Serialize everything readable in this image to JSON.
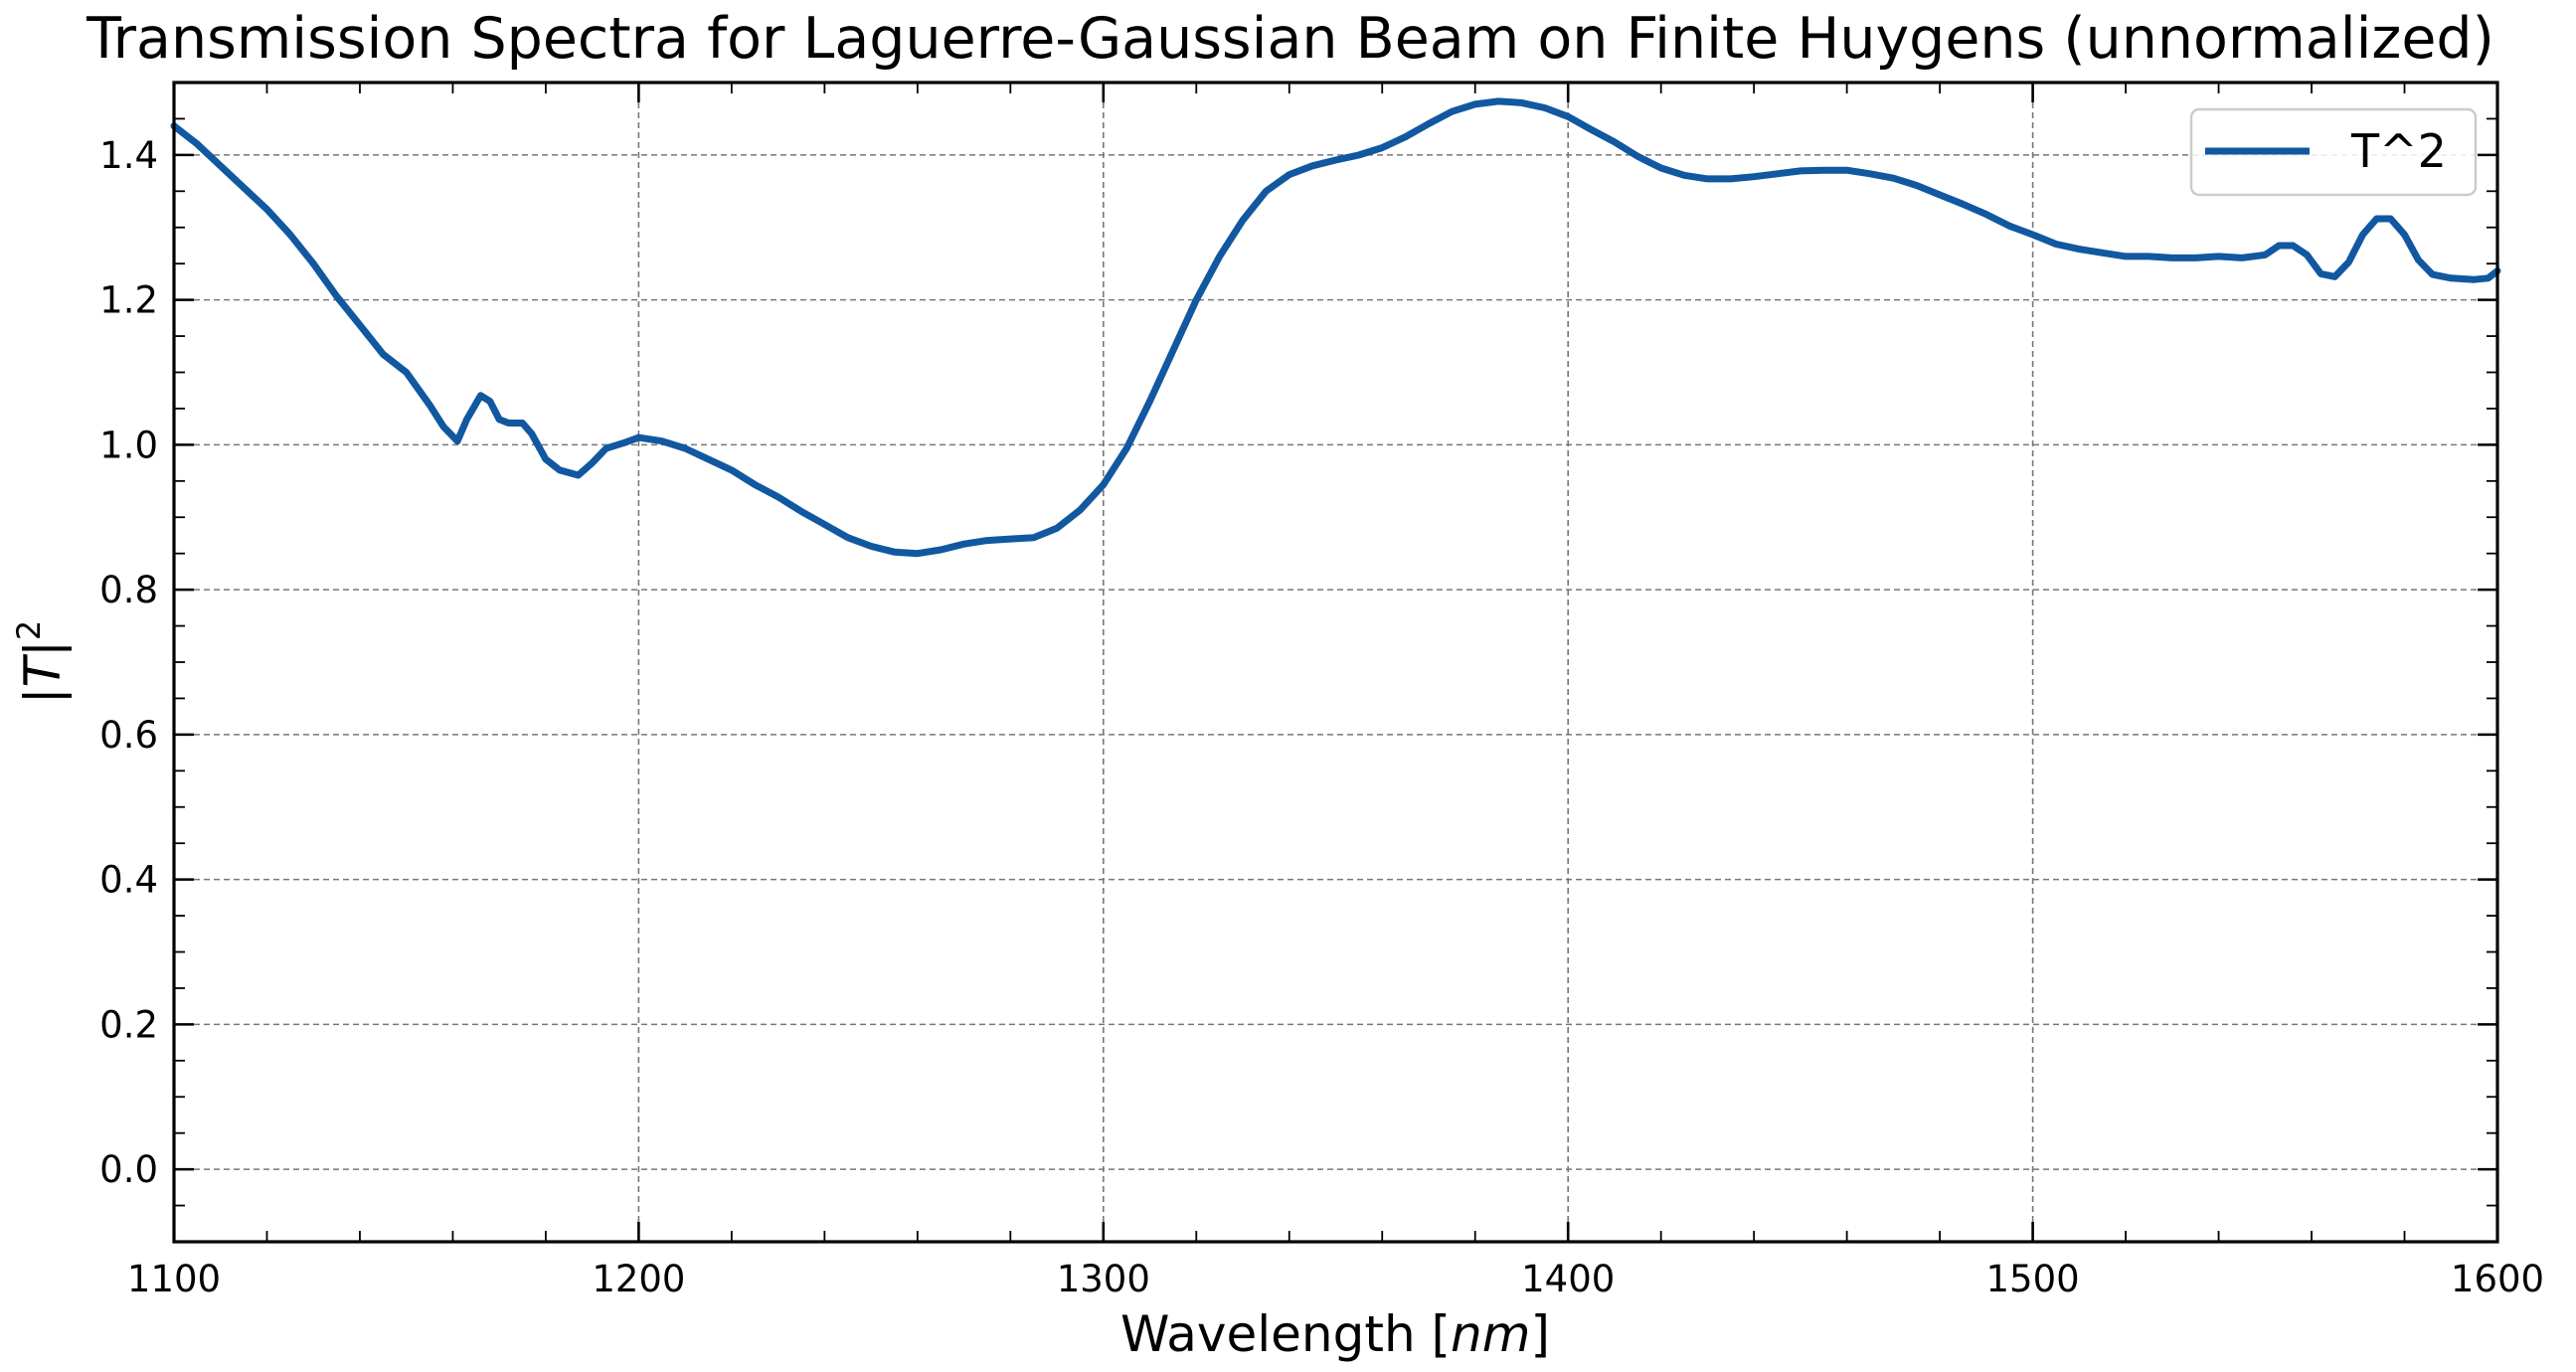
{
  "chart_data": {
    "type": "line",
    "title": "Transmission Spectra for Laguerre-Gaussian Beam on Finite Huygens (unnormalized)",
    "xlabel_main": "Wavelength [",
    "xlabel_unit": "nm",
    "xlabel_close": "]",
    "ylabel_main": "|T|",
    "ylabel_sup": "2",
    "xlim": [
      1100,
      1600
    ],
    "ylim": [
      -0.1,
      1.5
    ],
    "xticks": [
      "1100",
      "1200",
      "1300",
      "1400",
      "1500",
      "1600"
    ],
    "yticks": [
      "0.0",
      "0.2",
      "0.4",
      "0.6",
      "0.8",
      "1.0",
      "1.2",
      "1.4"
    ],
    "grid": true,
    "legend_position": "top-right",
    "series": [
      {
        "name": "T^2",
        "color": "#1158a0",
        "x": [
          1100,
          1105,
          1110,
          1115,
          1120,
          1125,
          1130,
          1135,
          1140,
          1145,
          1150,
          1155,
          1158,
          1161,
          1163,
          1166,
          1168,
          1170,
          1172,
          1175,
          1177,
          1180,
          1183,
          1187,
          1190,
          1193,
          1197,
          1200,
          1205,
          1210,
          1215,
          1220,
          1225,
          1230,
          1235,
          1240,
          1245,
          1250,
          1255,
          1260,
          1265,
          1270,
          1275,
          1280,
          1285,
          1290,
          1295,
          1300,
          1305,
          1310,
          1315,
          1320,
          1325,
          1330,
          1335,
          1340,
          1345,
          1350,
          1355,
          1360,
          1365,
          1370,
          1375,
          1380,
          1385,
          1390,
          1395,
          1400,
          1405,
          1410,
          1415,
          1420,
          1425,
          1430,
          1435,
          1440,
          1445,
          1450,
          1455,
          1460,
          1465,
          1470,
          1475,
          1480,
          1485,
          1490,
          1495,
          1500,
          1505,
          1510,
          1515,
          1520,
          1525,
          1530,
          1535,
          1540,
          1545,
          1550,
          1553,
          1556,
          1559,
          1562,
          1565,
          1568,
          1571,
          1574,
          1577,
          1580,
          1583,
          1586,
          1590,
          1595,
          1598,
          1600
        ],
        "y": [
          1.44,
          1.415,
          1.385,
          1.355,
          1.325,
          1.29,
          1.25,
          1.205,
          1.165,
          1.125,
          1.1,
          1.055,
          1.025,
          1.005,
          1.035,
          1.068,
          1.06,
          1.035,
          1.03,
          1.03,
          1.015,
          0.98,
          0.965,
          0.958,
          0.975,
          0.995,
          1.003,
          1.01,
          1.005,
          0.995,
          0.98,
          0.965,
          0.945,
          0.928,
          0.908,
          0.89,
          0.872,
          0.86,
          0.852,
          0.85,
          0.855,
          0.863,
          0.868,
          0.87,
          0.872,
          0.885,
          0.91,
          0.945,
          0.995,
          1.06,
          1.13,
          1.2,
          1.26,
          1.31,
          1.35,
          1.373,
          1.385,
          1.393,
          1.4,
          1.41,
          1.425,
          1.443,
          1.46,
          1.47,
          1.474,
          1.472,
          1.465,
          1.453,
          1.435,
          1.418,
          1.398,
          1.382,
          1.372,
          1.367,
          1.367,
          1.37,
          1.374,
          1.378,
          1.379,
          1.379,
          1.374,
          1.368,
          1.358,
          1.345,
          1.332,
          1.318,
          1.302,
          1.29,
          1.277,
          1.27,
          1.265,
          1.26,
          1.26,
          1.258,
          1.258,
          1.26,
          1.258,
          1.262,
          1.275,
          1.275,
          1.262,
          1.236,
          1.232,
          1.252,
          1.29,
          1.312,
          1.312,
          1.29,
          1.255,
          1.235,
          1.23,
          1.228,
          1.23,
          1.24
        ]
      }
    ]
  }
}
